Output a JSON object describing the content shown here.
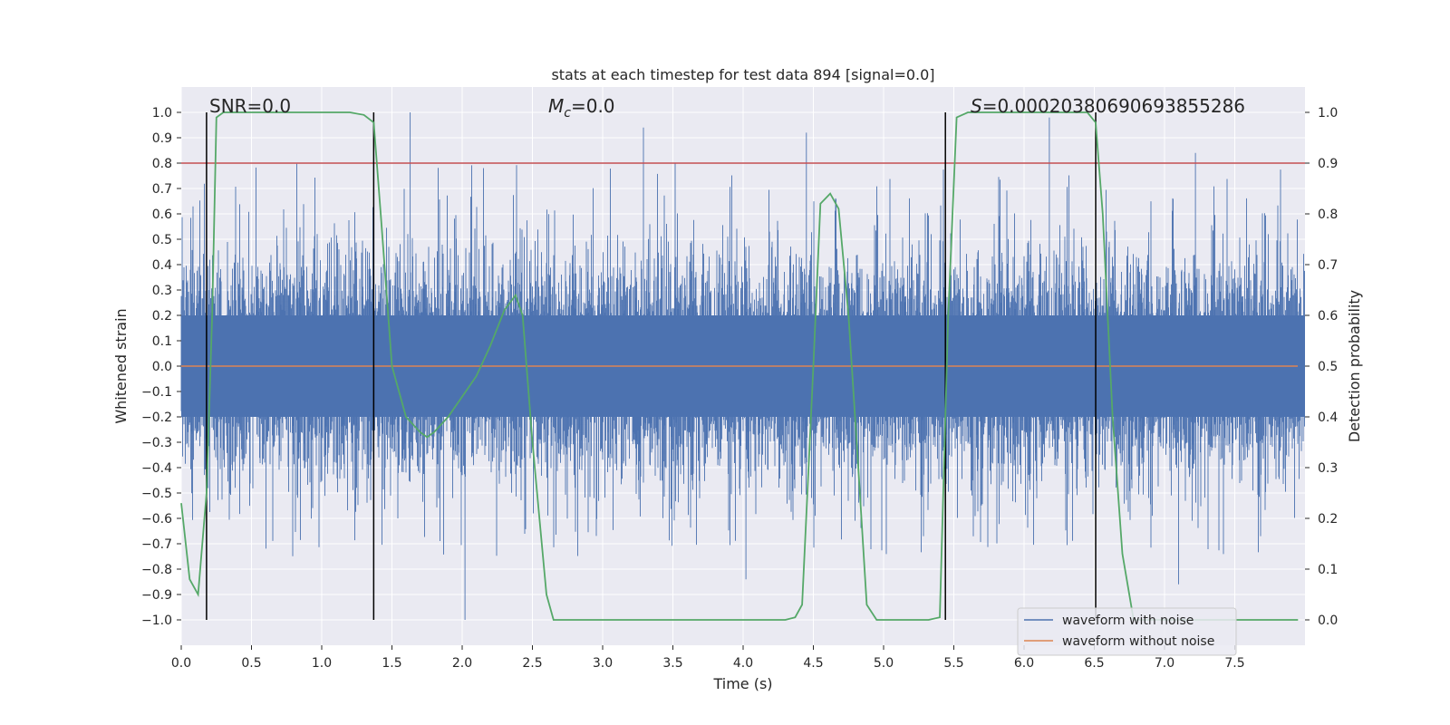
{
  "chart_data": {
    "type": "line",
    "title": "stats at each timestep for test data 894 [signal=0.0]",
    "xlabel": "Time (s)",
    "ylabel": "Whitened strain",
    "ylabel_right": "Detection probability",
    "xlim": [
      0.0,
      8.0
    ],
    "ylim": [
      -1.1,
      1.1
    ],
    "ylim_right": [
      -0.05,
      1.05
    ],
    "x_ticks": [
      "0.0",
      "0.5",
      "1.0",
      "1.5",
      "2.0",
      "2.5",
      "3.0",
      "3.5",
      "4.0",
      "4.5",
      "5.0",
      "5.5",
      "6.0",
      "6.5",
      "7.0",
      "7.5"
    ],
    "y_ticks": [
      "1.0",
      "0.9",
      "0.8",
      "0.7",
      "0.6",
      "0.5",
      "0.4",
      "0.3",
      "0.2",
      "0.1",
      "0.0",
      "−0.1",
      "−0.2",
      "−0.3",
      "−0.4",
      "−0.5",
      "−0.6",
      "−0.7",
      "−0.8",
      "−0.9",
      "−1.0"
    ],
    "y_right_ticks": [
      "1.0",
      "0.9",
      "0.8",
      "0.7",
      "0.6",
      "0.5",
      "0.4",
      "0.3",
      "0.2",
      "0.1",
      "0.0"
    ],
    "annotations": {
      "snr": "SNR=0.0",
      "mc_symbol": "M",
      "mc_sub": "c",
      "mc_value": "=0.0",
      "s_symbol": "S",
      "s_value": "=0.00020380690693855286"
    },
    "threshold": 0.8,
    "vertical_lines": [
      0.18,
      1.37,
      5.44,
      6.51
    ],
    "series": [
      {
        "name": "waveform with noise",
        "color": "#4c72b0",
        "style": "noise",
        "x_range": [
          0.0,
          8.0
        ],
        "amplitude_typical": 0.35,
        "amplitude_max": 1.0
      },
      {
        "name": "waveform without noise",
        "color": "#dd8452",
        "values_constant": 0.0
      },
      {
        "name": "detection probability",
        "color": "#55a868",
        "axis": "right",
        "x": [
          0.0,
          0.06,
          0.12,
          0.18,
          0.22,
          0.25,
          0.3,
          1.2,
          1.3,
          1.37,
          1.42,
          1.5,
          1.6,
          1.7,
          1.75,
          1.8,
          1.9,
          2.0,
          2.1,
          2.2,
          2.3,
          2.38,
          2.43,
          2.5,
          2.6,
          2.65,
          2.8,
          4.3,
          4.37,
          4.42,
          4.5,
          4.55,
          4.62,
          4.68,
          4.75,
          4.82,
          4.88,
          4.95,
          5.0,
          5.32,
          5.4,
          5.46,
          5.52,
          5.6,
          6.45,
          6.51,
          6.56,
          6.63,
          6.7,
          6.78,
          7.95
        ],
        "y": [
          0.23,
          0.08,
          0.05,
          0.25,
          0.6,
          0.99,
          1.0,
          1.0,
          0.995,
          0.98,
          0.8,
          0.5,
          0.4,
          0.37,
          0.36,
          0.37,
          0.4,
          0.44,
          0.48,
          0.54,
          0.61,
          0.64,
          0.6,
          0.35,
          0.05,
          0.0,
          0.0,
          0.0,
          0.005,
          0.03,
          0.5,
          0.82,
          0.84,
          0.81,
          0.6,
          0.3,
          0.03,
          0.0,
          0.0,
          0.0,
          0.005,
          0.6,
          0.99,
          1.0,
          1.0,
          0.98,
          0.8,
          0.4,
          0.13,
          0.0,
          0.0
        ]
      }
    ],
    "legend": {
      "position": "lower-right",
      "entries": [
        {
          "label": "waveform with noise",
          "color": "#4c72b0"
        },
        {
          "label": "waveform without noise",
          "color": "#dd8452"
        }
      ]
    },
    "grid": true,
    "colors": {
      "background": "#eaeaf2",
      "grid": "#ffffff",
      "threshold": "#c44e52",
      "vline": "#000000",
      "text": "#262626"
    }
  }
}
